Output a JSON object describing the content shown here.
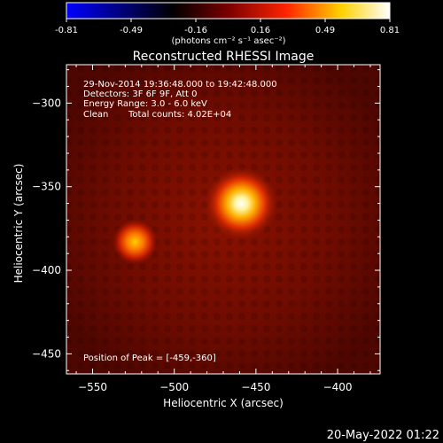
{
  "colorbar": {
    "ticks": [
      "-0.81",
      "-0.49",
      "-0.16",
      "0.16",
      "0.49",
      "0.81"
    ],
    "unit_label": "(photons cm⁻² s⁻¹ asec⁻²)"
  },
  "chart_data": {
    "type": "heatmap",
    "title": "Reconstructed RHESSI Image",
    "xlabel": "Heliocentric X (arcsec)",
    "ylabel": "Heliocentric Y (arcsec)",
    "xlim": [
      -566,
      -374
    ],
    "ylim": [
      -462,
      -277
    ],
    "xticks": [
      -550,
      -500,
      -450,
      -400
    ],
    "yticks": [
      -300,
      -350,
      -400,
      -450
    ],
    "color_range": [
      -0.81,
      0.81
    ],
    "colormap": "blue-black-red-yellow-white",
    "sources": [
      {
        "x": -459,
        "y": -360,
        "peak": 0.81
      },
      {
        "x": -524,
        "y": -383,
        "peak": 0.5
      }
    ],
    "annotations": [
      "29-Nov-2014 19:36:48.000 to 19:42:48.000",
      "Detectors: 3F 6F 9F, Att 0",
      "Energy Range: 3.0 - 6.0 keV",
      "Clean",
      "Total counts: 4.02E+04"
    ],
    "peak_label": "Position of Peak = [-459,-360]"
  },
  "footer": {
    "timestamp": "20-May-2022 01:22"
  }
}
